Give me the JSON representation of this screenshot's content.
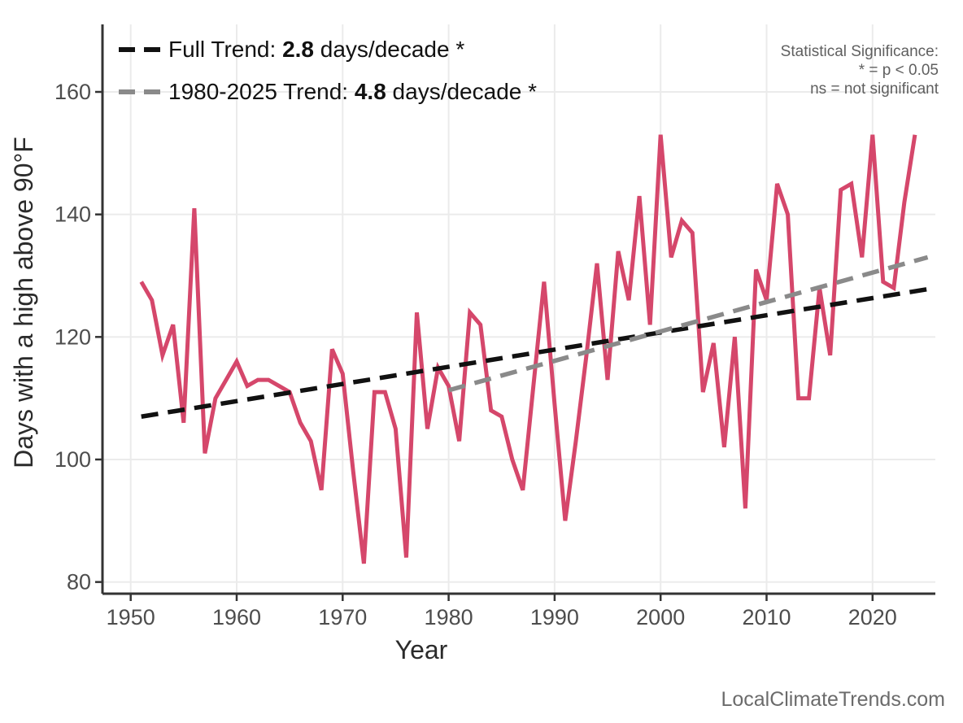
{
  "chart_data": {
    "type": "line",
    "title": "",
    "xlabel": "Year",
    "ylabel": "Days with a high above 90°F",
    "x_ticks": [
      1950,
      1960,
      1970,
      1980,
      1990,
      2000,
      2010,
      2020
    ],
    "y_ticks": [
      80,
      100,
      120,
      140,
      160
    ],
    "xlim": [
      1947.3,
      2025.9
    ],
    "ylim": [
      78,
      171
    ],
    "grid": true,
    "legend_position": "top-left",
    "series": [
      {
        "name": "Days with a high above 90°F",
        "color": "#d5476b",
        "start_year": 1951,
        "values": [
          129,
          126,
          117,
          122,
          106,
          141,
          101,
          110,
          113,
          116,
          112,
          113,
          113,
          112,
          111,
          106,
          103,
          95,
          118,
          114,
          98,
          83,
          111,
          111,
          105,
          84,
          124,
          105,
          115,
          112,
          103,
          124,
          122,
          108,
          107,
          100,
          95,
          112,
          129,
          109,
          90,
          103,
          117,
          132,
          113,
          134,
          126,
          143,
          122,
          153,
          133,
          139,
          137,
          111,
          119,
          102,
          120,
          92,
          131,
          126,
          145,
          140,
          110,
          110,
          128,
          117,
          144,
          145,
          133,
          153,
          129,
          128,
          142,
          153
        ]
      }
    ],
    "trend_lines": [
      {
        "name": "Full Trend",
        "slope_days_per_decade": 2.8,
        "significant": true,
        "color": "#111111",
        "x_start": 1951,
        "y_start": 107,
        "x_end": 2025.2,
        "y_end": 127.8
      },
      {
        "name": "1980-2025 Trend",
        "slope_days_per_decade": 4.8,
        "significant": true,
        "color": "#8a8a8a",
        "x_start": 1980,
        "y_start": 111.3,
        "x_end": 2025.2,
        "y_end": 133.0
      }
    ]
  },
  "legend": {
    "items": [
      {
        "prefix": "Full Trend: ",
        "value": "2.8",
        "suffix": " days/decade *",
        "color": "#111111"
      },
      {
        "prefix": "1980-2025 Trend: ",
        "value": "4.8",
        "suffix": " days/decade *",
        "color": "#8a8a8a"
      }
    ]
  },
  "significance_note": {
    "line1": "Statistical Significance:",
    "line2": "* = p < 0.05",
    "line3": "ns = not significant"
  },
  "axis": {
    "x_title": "Year",
    "y_title": "Days with a high above 90°F"
  },
  "footer": {
    "watermark": "LocalClimateTrends.com"
  },
  "colors": {
    "series_line": "#d5476b",
    "full_trend": "#111111",
    "recent_trend": "#8a8a8a",
    "gridline": "#ebebeb",
    "axis_line": "#333333",
    "tick_label": "#4d4d4d",
    "axis_title": "#2b2b2b"
  }
}
